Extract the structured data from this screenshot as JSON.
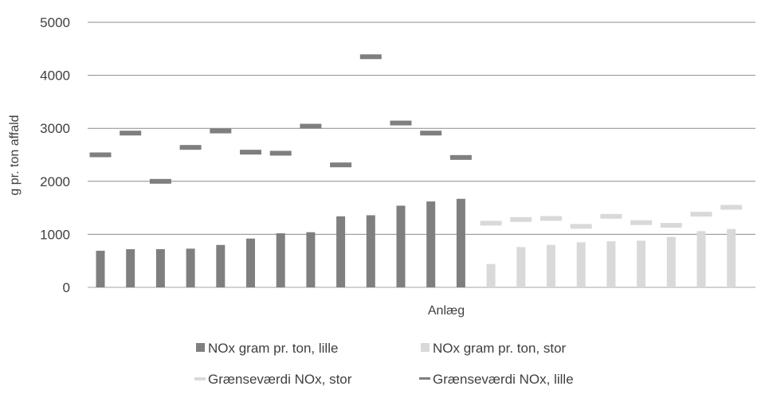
{
  "chart_data": {
    "type": "bar",
    "xlabel": "Anlæg",
    "ylabel": "g pr. ton affald",
    "ylim": [
      0,
      5000
    ],
    "yticks": [
      0,
      1000,
      2000,
      3000,
      4000,
      5000
    ],
    "grid": true,
    "legend_position": "bottom",
    "series": [
      {
        "name": "NOx gram pr. ton, lille",
        "color": "#7f7f7f",
        "mark": "bar",
        "values": [
          690,
          720,
          720,
          730,
          800,
          920,
          1020,
          1040,
          1340,
          1360,
          1540,
          1620,
          1670,
          null,
          null,
          null,
          null,
          null,
          null,
          null,
          null,
          null
        ]
      },
      {
        "name": "NOx gram pr. ton, stor",
        "color": "#d9d9d9",
        "mark": "bar",
        "values": [
          null,
          null,
          null,
          null,
          null,
          null,
          null,
          null,
          null,
          null,
          null,
          null,
          null,
          440,
          760,
          800,
          850,
          870,
          880,
          950,
          1060,
          1100
        ]
      },
      {
        "name": "Grænseværdi NOx, stor",
        "color": "#d9d9d9",
        "mark": "dash",
        "values": [
          null,
          null,
          null,
          null,
          null,
          null,
          null,
          null,
          null,
          null,
          null,
          null,
          null,
          1210,
          1280,
          1300,
          1150,
          1340,
          1220,
          1170,
          1380,
          1510
        ]
      },
      {
        "name": "Grænseværdi NOx, lille",
        "color": "#7f7f7f",
        "mark": "dash",
        "values": [
          2500,
          2910,
          2000,
          2640,
          2950,
          2550,
          2530,
          3040,
          2310,
          4350,
          3100,
          2910,
          2450,
          null,
          null,
          null,
          null,
          null,
          null,
          null,
          null,
          null
        ]
      }
    ]
  },
  "legend": {
    "order": [
      0,
      1,
      2,
      3
    ]
  }
}
